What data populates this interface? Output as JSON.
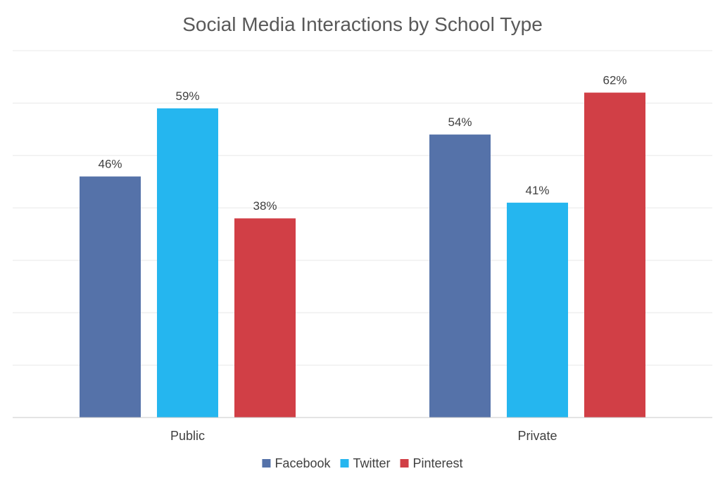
{
  "chart_data": {
    "type": "bar",
    "title": "Social Media Interactions by School Type",
    "xlabel": "",
    "ylabel": "",
    "categories": [
      "Public",
      "Private"
    ],
    "series": [
      {
        "name": "Facebook",
        "values": [
          46,
          54
        ],
        "labels": [
          "46%",
          "54%"
        ],
        "color": "#5572a9"
      },
      {
        "name": "Twitter",
        "values": [
          59,
          41
        ],
        "labels": [
          "59%",
          "41%"
        ],
        "color": "#25b6ef"
      },
      {
        "name": "Pinterest",
        "values": [
          38,
          62
        ],
        "labels": [
          "38%",
          "62%"
        ],
        "color": "#d13f46"
      }
    ],
    "ylim": [
      0,
      70
    ],
    "grid": true,
    "y_tick_labels_shown": false,
    "legend_position": "bottom"
  }
}
